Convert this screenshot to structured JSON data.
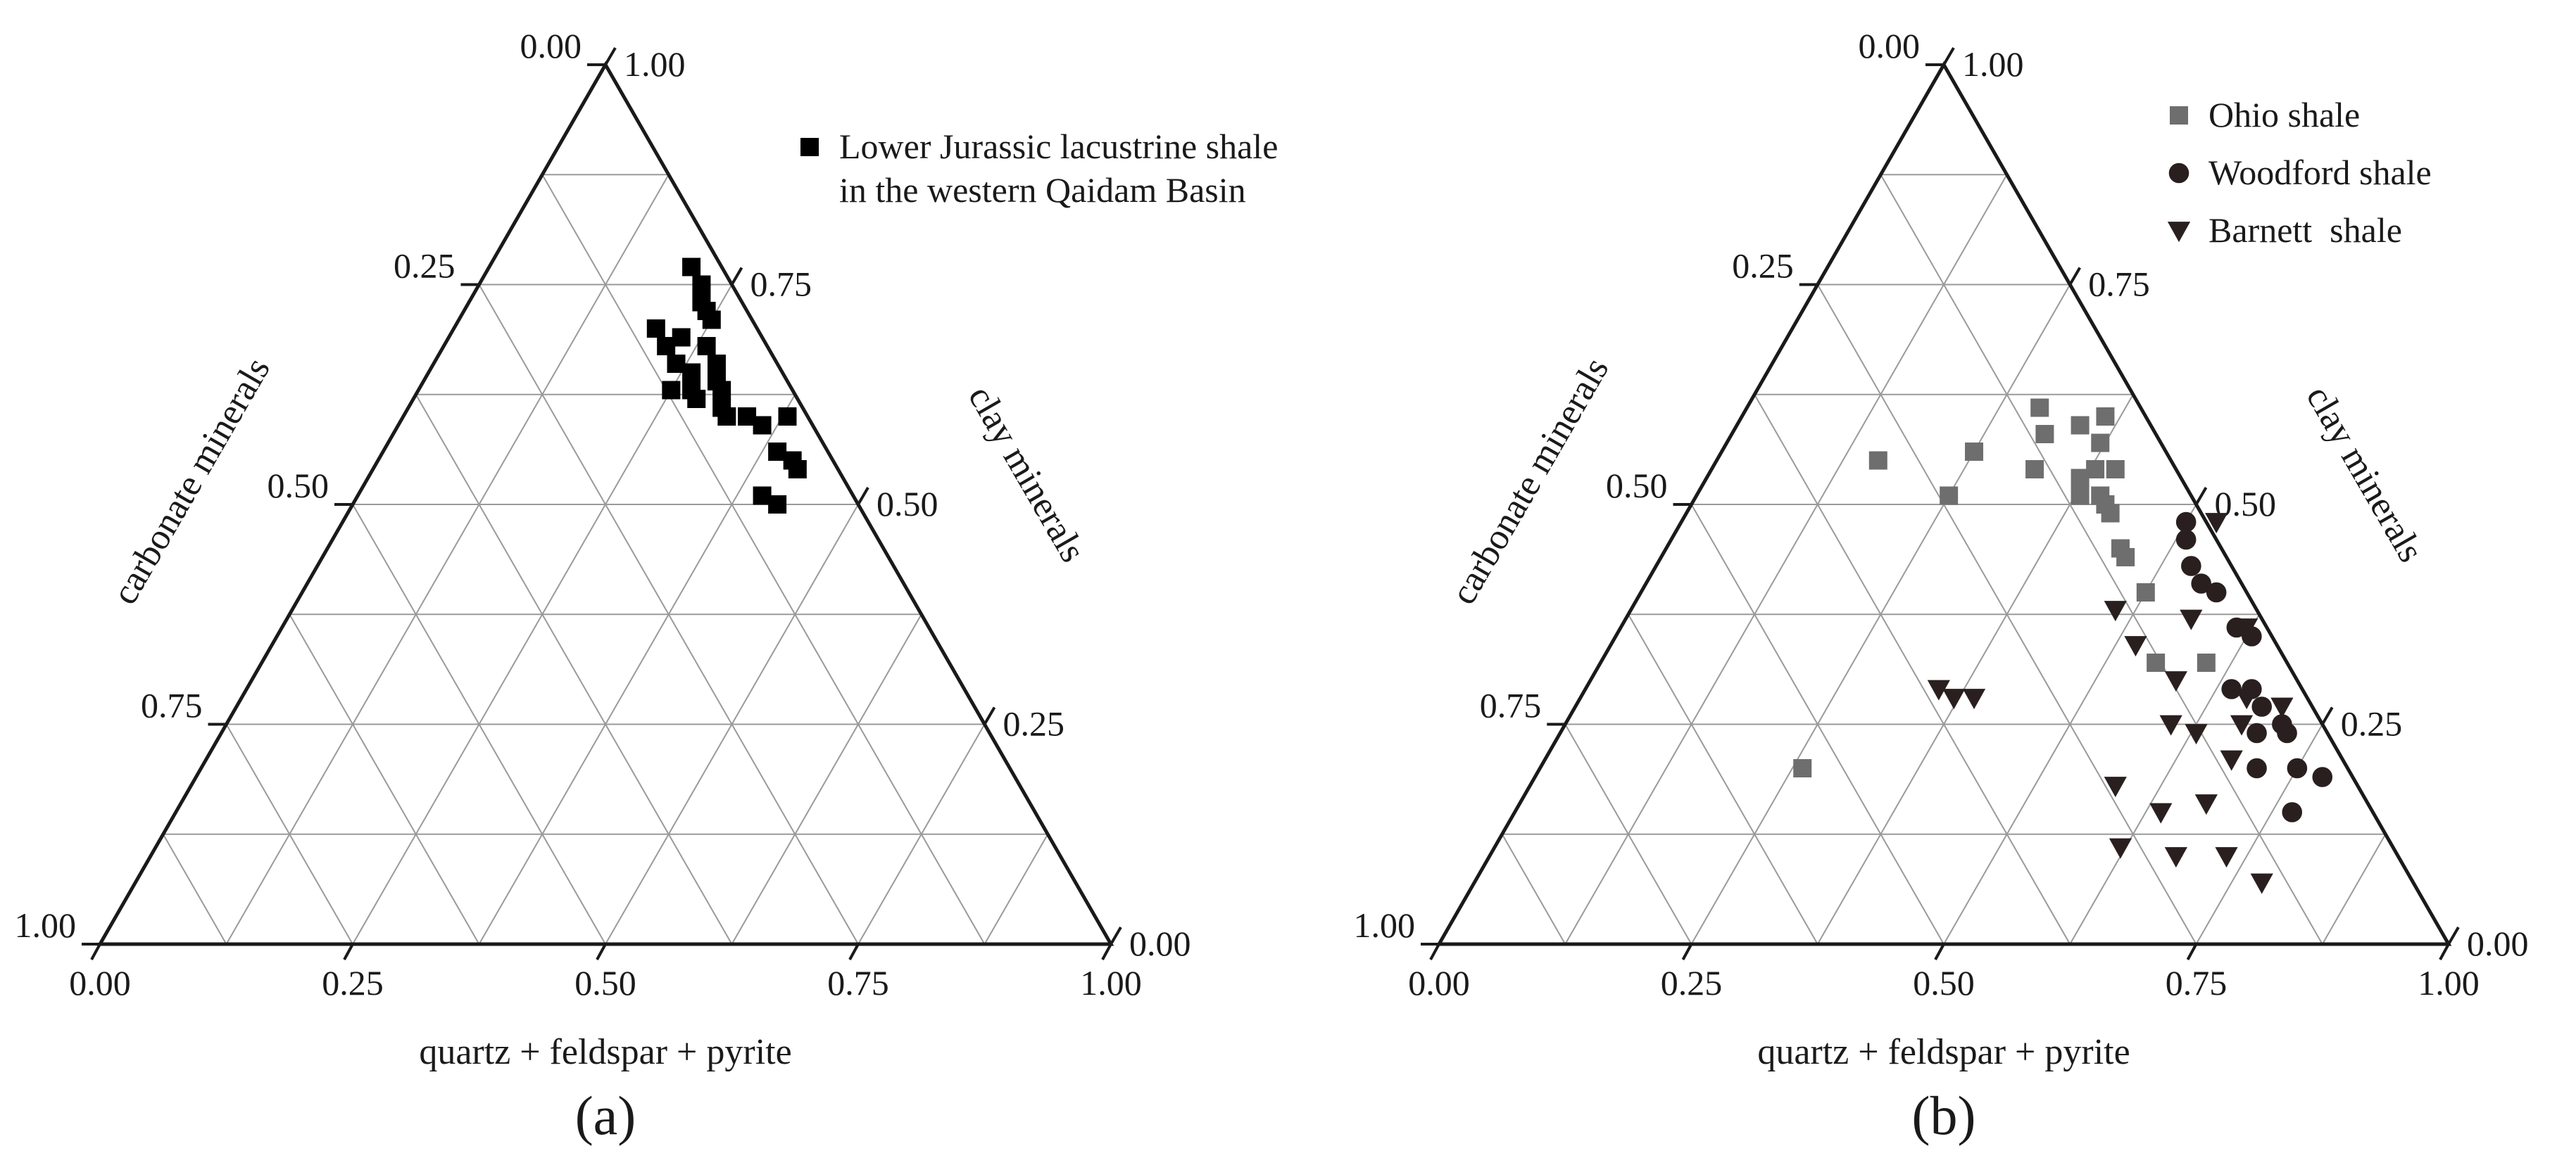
{
  "chart_data": [
    {
      "panel_label": "(a)",
      "type": "ternary-scatter",
      "axes": {
        "bottom": {
          "label": "quartz + feldspar + pyrite",
          "ticks": [
            "0.00",
            "0.25",
            "0.50",
            "0.75",
            "1.00"
          ]
        },
        "left": {
          "label": "carbonate minerals",
          "ticks": [
            "0.00",
            "0.25",
            "0.50",
            "0.75",
            "1.00"
          ]
        },
        "right": {
          "label": "clay minerals",
          "ticks": [
            "1.00",
            "0.75",
            "0.50",
            "0.25",
            "0.00"
          ]
        }
      },
      "grid": true,
      "legend_position": "top-right",
      "series": [
        {
          "name": "Lower Jurassic lacustrine shale in the western Qaidam Basin",
          "legend_lines": [
            "Lower Jurassic lacustrine shale",
            "in the western Qaidam Basin"
          ],
          "marker": "square",
          "color": "#000000",
          "points": [
            {
              "quartz_feldspar_pyrite": 0.2,
              "clay": 0.77,
              "carbonate": 0.03
            },
            {
              "quartz_feldspar_pyrite": 0.22,
              "clay": 0.75,
              "carbonate": 0.03
            },
            {
              "quartz_feldspar_pyrite": 0.23,
              "clay": 0.73,
              "carbonate": 0.04
            },
            {
              "quartz_feldspar_pyrite": 0.24,
              "clay": 0.72,
              "carbonate": 0.04
            },
            {
              "quartz_feldspar_pyrite": 0.25,
              "clay": 0.71,
              "carbonate": 0.04
            },
            {
              "quartz_feldspar_pyrite": 0.2,
              "clay": 0.7,
              "carbonate": 0.1
            },
            {
              "quartz_feldspar_pyrite": 0.22,
              "clay": 0.68,
              "carbonate": 0.1
            },
            {
              "quartz_feldspar_pyrite": 0.23,
              "clay": 0.69,
              "carbonate": 0.08
            },
            {
              "quartz_feldspar_pyrite": 0.26,
              "clay": 0.68,
              "carbonate": 0.06
            },
            {
              "quartz_feldspar_pyrite": 0.24,
              "clay": 0.66,
              "carbonate": 0.1
            },
            {
              "quartz_feldspar_pyrite": 0.26,
              "clay": 0.65,
              "carbonate": 0.09
            },
            {
              "quartz_feldspar_pyrite": 0.28,
              "clay": 0.66,
              "carbonate": 0.06
            },
            {
              "quartz_feldspar_pyrite": 0.25,
              "clay": 0.63,
              "carbonate": 0.12
            },
            {
              "quartz_feldspar_pyrite": 0.27,
              "clay": 0.63,
              "carbonate": 0.1
            },
            {
              "quartz_feldspar_pyrite": 0.29,
              "clay": 0.64,
              "carbonate": 0.07
            },
            {
              "quartz_feldspar_pyrite": 0.3,
              "clay": 0.63,
              "carbonate": 0.07
            },
            {
              "quartz_feldspar_pyrite": 0.28,
              "clay": 0.62,
              "carbonate": 0.1
            },
            {
              "quartz_feldspar_pyrite": 0.31,
              "clay": 0.61,
              "carbonate": 0.08
            },
            {
              "quartz_feldspar_pyrite": 0.32,
              "clay": 0.6,
              "carbonate": 0.08
            },
            {
              "quartz_feldspar_pyrite": 0.34,
              "clay": 0.6,
              "carbonate": 0.06
            },
            {
              "quartz_feldspar_pyrite": 0.36,
              "clay": 0.59,
              "carbonate": 0.05
            },
            {
              "quartz_feldspar_pyrite": 0.38,
              "clay": 0.6,
              "carbonate": 0.02
            },
            {
              "quartz_feldspar_pyrite": 0.39,
              "clay": 0.56,
              "carbonate": 0.05
            },
            {
              "quartz_feldspar_pyrite": 0.41,
              "clay": 0.55,
              "carbonate": 0.04
            },
            {
              "quartz_feldspar_pyrite": 0.42,
              "clay": 0.54,
              "carbonate": 0.04
            },
            {
              "quartz_feldspar_pyrite": 0.4,
              "clay": 0.51,
              "carbonate": 0.09
            },
            {
              "quartz_feldspar_pyrite": 0.42,
              "clay": 0.5,
              "carbonate": 0.08
            }
          ]
        }
      ]
    },
    {
      "panel_label": "(b)",
      "type": "ternary-scatter",
      "axes": {
        "bottom": {
          "label": "quartz + feldspar + pyrite",
          "ticks": [
            "0.00",
            "0.25",
            "0.50",
            "0.75",
            "1.00"
          ]
        },
        "left": {
          "label": "carbonate minerals",
          "ticks": [
            "0.00",
            "0.25",
            "0.50",
            "0.75",
            "1.00"
          ]
        },
        "right": {
          "label": "clay minerals",
          "ticks": [
            "1.00",
            "0.75",
            "0.50",
            "0.25",
            "0.00"
          ]
        }
      },
      "grid": true,
      "legend_position": "top-right",
      "series": [
        {
          "name": "Ohio shale",
          "marker": "square",
          "color": "#6e6e6e",
          "points": [
            {
              "quartz_feldspar_pyrite": 0.16,
              "clay": 0.55,
              "carbonate": 0.29
            },
            {
              "quartz_feldspar_pyrite": 0.25,
              "clay": 0.56,
              "carbonate": 0.19
            },
            {
              "quartz_feldspar_pyrite": 0.25,
              "clay": 0.51,
              "carbonate": 0.24
            },
            {
              "quartz_feldspar_pyrite": 0.29,
              "clay": 0.61,
              "carbonate": 0.1
            },
            {
              "quartz_feldspar_pyrite": 0.31,
              "clay": 0.58,
              "carbonate": 0.11
            },
            {
              "quartz_feldspar_pyrite": 0.32,
              "clay": 0.54,
              "carbonate": 0.14
            },
            {
              "quartz_feldspar_pyrite": 0.34,
              "clay": 0.59,
              "carbonate": 0.07
            },
            {
              "quartz_feldspar_pyrite": 0.36,
              "clay": 0.6,
              "carbonate": 0.04
            },
            {
              "quartz_feldspar_pyrite": 0.37,
              "clay": 0.57,
              "carbonate": 0.06
            },
            {
              "quartz_feldspar_pyrite": 0.37,
              "clay": 0.53,
              "carbonate": 0.1
            },
            {
              "quartz_feldspar_pyrite": 0.38,
              "clay": 0.54,
              "carbonate": 0.08
            },
            {
              "quartz_feldspar_pyrite": 0.38,
              "clay": 0.51,
              "carbonate": 0.11
            },
            {
              "quartz_feldspar_pyrite": 0.4,
              "clay": 0.54,
              "carbonate": 0.06
            },
            {
              "quartz_feldspar_pyrite": 0.4,
              "clay": 0.51,
              "carbonate": 0.09
            },
            {
              "quartz_feldspar_pyrite": 0.41,
              "clay": 0.5,
              "carbonate": 0.09
            },
            {
              "quartz_feldspar_pyrite": 0.42,
              "clay": 0.49,
              "carbonate": 0.09
            },
            {
              "quartz_feldspar_pyrite": 0.45,
              "clay": 0.45,
              "carbonate": 0.1
            },
            {
              "quartz_feldspar_pyrite": 0.46,
              "clay": 0.44,
              "carbonate": 0.1
            },
            {
              "quartz_feldspar_pyrite": 0.5,
              "clay": 0.4,
              "carbonate": 0.1
            },
            {
              "quartz_feldspar_pyrite": 0.55,
              "clay": 0.32,
              "carbonate": 0.13
            },
            {
              "quartz_feldspar_pyrite": 0.6,
              "clay": 0.32,
              "carbonate": 0.08
            },
            {
              "quartz_feldspar_pyrite": 0.26,
              "clay": 0.2,
              "carbonate": 0.54
            }
          ]
        },
        {
          "name": "Woodford shale",
          "marker": "circle",
          "color": "#2a1f1f",
          "points": [
            {
              "quartz_feldspar_pyrite": 0.5,
              "clay": 0.48,
              "carbonate": 0.02
            },
            {
              "quartz_feldspar_pyrite": 0.51,
              "clay": 0.46,
              "carbonate": 0.03
            },
            {
              "quartz_feldspar_pyrite": 0.53,
              "clay": 0.43,
              "carbonate": 0.04
            },
            {
              "quartz_feldspar_pyrite": 0.55,
              "clay": 0.41,
              "carbonate": 0.04
            },
            {
              "quartz_feldspar_pyrite": 0.57,
              "clay": 0.4,
              "carbonate": 0.03
            },
            {
              "quartz_feldspar_pyrite": 0.61,
              "clay": 0.36,
              "carbonate": 0.03
            },
            {
              "quartz_feldspar_pyrite": 0.63,
              "clay": 0.35,
              "carbonate": 0.02
            },
            {
              "quartz_feldspar_pyrite": 0.64,
              "clay": 0.29,
              "carbonate": 0.07
            },
            {
              "quartz_feldspar_pyrite": 0.66,
              "clay": 0.29,
              "carbonate": 0.05
            },
            {
              "quartz_feldspar_pyrite": 0.68,
              "clay": 0.27,
              "carbonate": 0.05
            },
            {
              "quartz_feldspar_pyrite": 0.69,
              "clay": 0.24,
              "carbonate": 0.07
            },
            {
              "quartz_feldspar_pyrite": 0.71,
              "clay": 0.25,
              "carbonate": 0.04
            },
            {
              "quartz_feldspar_pyrite": 0.71,
              "clay": 0.2,
              "carbonate": 0.09
            },
            {
              "quartz_feldspar_pyrite": 0.72,
              "clay": 0.24,
              "carbonate": 0.04
            },
            {
              "quartz_feldspar_pyrite": 0.75,
              "clay": 0.2,
              "carbonate": 0.05
            },
            {
              "quartz_feldspar_pyrite": 0.77,
              "clay": 0.15,
              "carbonate": 0.08
            },
            {
              "quartz_feldspar_pyrite": 0.78,
              "clay": 0.19,
              "carbonate": 0.03
            }
          ]
        },
        {
          "name": "Barnett shale",
          "legend_text": "Barnett  shale",
          "marker": "triangle-down",
          "color": "#2a1f1f",
          "points": [
            {
              "quartz_feldspar_pyrite": 0.53,
              "clay": 0.48,
              "carbonate": -0.01
            },
            {
              "quartz_feldspar_pyrite": 0.48,
              "clay": 0.38,
              "carbonate": 0.14
            },
            {
              "quartz_feldspar_pyrite": 0.52,
              "clay": 0.34,
              "carbonate": 0.14
            },
            {
              "quartz_feldspar_pyrite": 0.56,
              "clay": 0.37,
              "carbonate": 0.07
            },
            {
              "quartz_feldspar_pyrite": 0.62,
              "clay": 0.36,
              "carbonate": 0.02
            },
            {
              "quartz_feldspar_pyrite": 0.35,
              "clay": 0.29,
              "carbonate": 0.36
            },
            {
              "quartz_feldspar_pyrite": 0.37,
              "clay": 0.28,
              "carbonate": 0.35
            },
            {
              "quartz_feldspar_pyrite": 0.39,
              "clay": 0.28,
              "carbonate": 0.33
            },
            {
              "quartz_feldspar_pyrite": 0.58,
              "clay": 0.3,
              "carbonate": 0.12
            },
            {
              "quartz_feldspar_pyrite": 0.6,
              "clay": 0.25,
              "carbonate": 0.15
            },
            {
              "quartz_feldspar_pyrite": 0.63,
              "clay": 0.24,
              "carbonate": 0.13
            },
            {
              "quartz_feldspar_pyrite": 0.66,
              "clay": 0.28,
              "carbonate": 0.06
            },
            {
              "quartz_feldspar_pyrite": 0.67,
              "clay": 0.25,
              "carbonate": 0.08
            },
            {
              "quartz_feldspar_pyrite": 0.68,
              "clay": 0.21,
              "carbonate": 0.11
            },
            {
              "quartz_feldspar_pyrite": 0.7,
              "clay": 0.27,
              "carbonate": 0.03
            },
            {
              "quartz_feldspar_pyrite": 0.58,
              "clay": 0.18,
              "carbonate": 0.24
            },
            {
              "quartz_feldspar_pyrite": 0.64,
              "clay": 0.15,
              "carbonate": 0.21
            },
            {
              "quartz_feldspar_pyrite": 0.68,
              "clay": 0.16,
              "carbonate": 0.16
            },
            {
              "quartz_feldspar_pyrite": 0.62,
              "clay": 0.11,
              "carbonate": 0.27
            },
            {
              "quartz_feldspar_pyrite": 0.68,
              "clay": 0.1,
              "carbonate": 0.22
            },
            {
              "quartz_feldspar_pyrite": 0.73,
              "clay": 0.1,
              "carbonate": 0.17
            },
            {
              "quartz_feldspar_pyrite": 0.78,
              "clay": 0.07,
              "carbonate": 0.15
            }
          ]
        }
      ]
    }
  ]
}
